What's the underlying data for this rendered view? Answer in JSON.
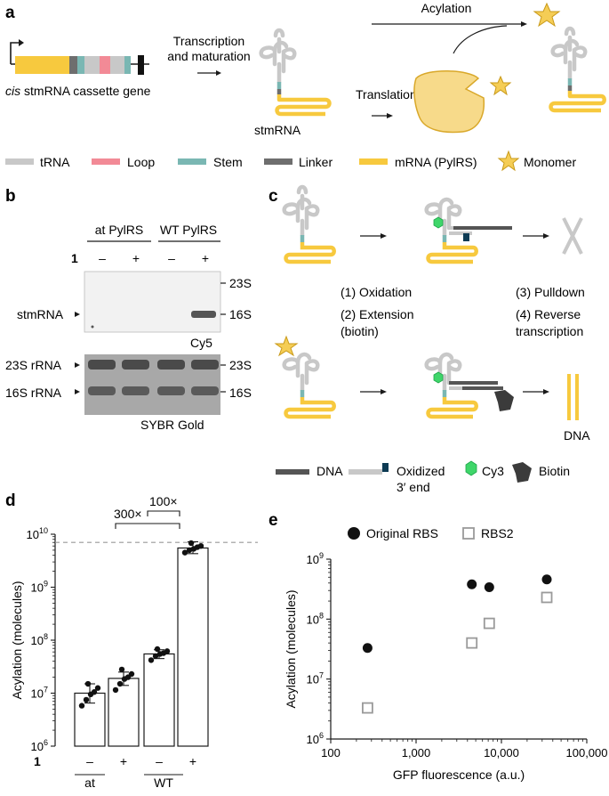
{
  "panel_labels": {
    "a": "a",
    "b": "b",
    "c": "c",
    "d": "d",
    "e": "e"
  },
  "panel_a": {
    "gene_label_italic": "cis",
    "gene_label_rest": " stmRNA cassette gene",
    "transcription_line1": "Transcription",
    "transcription_line2": "and maturation",
    "stmrna_label": "stmRNA",
    "acylation_label": "Acylation",
    "translation_label": "Translation"
  },
  "legend_a": {
    "trna": "tRNA",
    "loop": "Loop",
    "stem": "Stem",
    "linker": "Linker",
    "mrna": "mRNA (PylRS)",
    "monomer": "Monomer"
  },
  "panel_b": {
    "group_at": "at PylRS",
    "group_wt": "WT PylRS",
    "compound": "1",
    "lane_signs": [
      "–",
      "+",
      "–",
      "+"
    ],
    "stmrna_label": "stmRNA",
    "marker_23s": "23S",
    "marker_16s": "16S",
    "cy5_label": "Cy5",
    "rrna_23s_label": "23S rRNA",
    "rrna_16s_label": "16S rRNA",
    "sybr_label": "SYBR Gold"
  },
  "panel_c": {
    "step1": "(1) Oxidation",
    "step2a": "(2) Extension",
    "step2b": "(biotin)",
    "step3": "(3) Pulldown",
    "step4a": "(4) Reverse",
    "step4b": "transcription",
    "dna_product": "DNA"
  },
  "legend_c": {
    "dna": "DNA",
    "oxidized_line1": "Oxidized",
    "oxidized_line2": "3′ end",
    "cy3": "Cy3",
    "biotin": "Biotin"
  },
  "colors": {
    "trna_grey": "#c8c8c8",
    "loop_pink": "#f28a96",
    "stem_teal": "#7ab7b3",
    "linker_grey": "#6e6e6e",
    "mrna_yellow": "#f7c93e",
    "monomer_star": "#f5cd55",
    "pylrs_body": "#f7da8a",
    "cy3_green": "#3fd66a",
    "oxidized_navy": "#0d3b54",
    "dna_dark": "#555555",
    "biotin_dark": "#3b3b3b"
  },
  "panel_d": {
    "annot_300": "300×",
    "annot_100": "100×",
    "group_labels": [
      "at",
      "WT"
    ]
  },
  "panel_e": {
    "legend_original": "Original RBS",
    "legend_rbs2": "RBS2"
  },
  "chart_data": [
    {
      "type": "bar",
      "panel": "d",
      "ylabel": "Acylation (molecules)",
      "yscale": "log",
      "ylim": [
        1000000,
        10000000000
      ],
      "yticks": [
        "10^6",
        "10^7",
        "10^8",
        "10^9",
        "10^10"
      ],
      "dashed_reference": 7000000000,
      "categories": [
        "at –",
        "at +",
        "WT –",
        "WT +"
      ],
      "compound_row": [
        "–",
        "+",
        "–",
        "+"
      ],
      "compound_label": "1",
      "values": [
        10000000,
        19000000,
        55000000,
        5500000000
      ],
      "points": [
        [
          5800000,
          7500000,
          9500000,
          10500000,
          12500000,
          15000000
        ],
        [
          11500000,
          15000000,
          18500000,
          20000000,
          23000000,
          28000000
        ],
        [
          42000000,
          50000000,
          55000000,
          57000000,
          62000000,
          68000000
        ],
        [
          4500000000,
          5000000000,
          5300000000,
          5700000000,
          6000000000,
          6800000000
        ]
      ],
      "error": [
        [
          6500000,
          15000000
        ],
        [
          14000000,
          25000000
        ],
        [
          45000000,
          66000000
        ],
        [
          4300000000,
          7200000000
        ]
      ],
      "annotations": [
        "300×",
        "100×"
      ]
    },
    {
      "type": "scatter",
      "panel": "e",
      "xlabel": "GFP fluorescence (a.u.)",
      "ylabel": "Acylation (molecules)",
      "xscale": "log",
      "yscale": "log",
      "xlim": [
        100,
        100000
      ],
      "ylim": [
        1000000,
        1000000000
      ],
      "xticks": [
        "100",
        "1,000",
        "10,000",
        "100,000"
      ],
      "yticks": [
        "10^6",
        "10^7",
        "10^8",
        "10^9"
      ],
      "series": [
        {
          "name": "Original RBS",
          "x": [
            270,
            4500,
            7200,
            34000
          ],
          "y": [
            33000000,
            380000000,
            340000000,
            460000000
          ]
        },
        {
          "name": "RBS2",
          "x": [
            270,
            4500,
            7200,
            34000
          ],
          "y": [
            3300000,
            40000000,
            85000000,
            230000000
          ]
        }
      ]
    }
  ]
}
